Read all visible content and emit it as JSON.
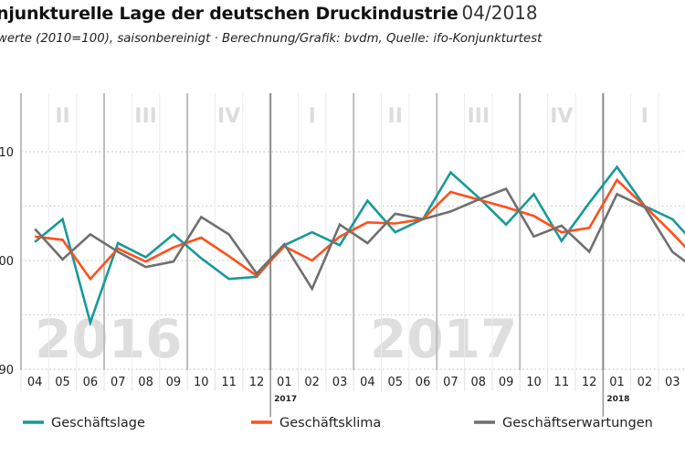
{
  "header": {
    "title": "njunkturelle Lage der deutschen Druckindustrie",
    "date": "04/2018",
    "subtitle": "werte (2010=100), saisonbereinigt  ·  Berechnung/Grafik: bvdm, Quelle: ifo-Konjunkturtest"
  },
  "chart_data": {
    "type": "line",
    "categories": [
      "04",
      "05",
      "06",
      "07",
      "08",
      "09",
      "10",
      "11",
      "12",
      "01",
      "02",
      "03",
      "04",
      "05",
      "06",
      "07",
      "08",
      "09",
      "10",
      "11",
      "12",
      "01",
      "02",
      "03",
      "04"
    ],
    "year_markers": [
      {
        "label": "2017",
        "at": "01"
      },
      {
        "label": "2018",
        "at": "01"
      }
    ],
    "year_watermarks": [
      "2016",
      "2017"
    ],
    "quarters": [
      "II",
      "III",
      "IV",
      "I",
      "II",
      "III",
      "IV",
      "I"
    ],
    "yticks": [
      90,
      100,
      110
    ],
    "ytick_labels": [
      "90",
      "100",
      "110"
    ],
    "ylim": [
      90,
      115
    ],
    "grid": true,
    "legend_position": "bottom",
    "series": [
      {
        "name": "Geschäftslage",
        "color": "#17999a",
        "values": [
          101.7,
          103.8,
          94.3,
          101.6,
          100.3,
          102.4,
          100.2,
          98.3,
          98.5,
          101.4,
          102.6,
          101.4,
          105.5,
          102.6,
          103.8,
          108.1,
          105.8,
          103.3,
          106.1,
          101.8,
          105.3,
          108.6,
          105.0,
          103.8,
          101.0
        ]
      },
      {
        "name": "Geschäftsklima",
        "color": "#ff4f1a",
        "values": [
          102.2,
          101.9,
          98.3,
          101.1,
          99.9,
          101.2,
          102.1,
          100.4,
          98.6,
          101.3,
          100.0,
          102.2,
          103.5,
          103.4,
          103.8,
          106.3,
          105.6,
          104.9,
          104.1,
          102.6,
          103.0,
          107.4,
          105.0,
          102.5,
          99.8
        ]
      },
      {
        "name": "Geschäftserwartungen",
        "color": "#6f6f6f",
        "values": [
          102.9,
          100.1,
          102.4,
          100.8,
          99.4,
          99.9,
          104.0,
          102.4,
          98.8,
          101.5,
          97.4,
          103.3,
          101.6,
          104.3,
          103.8,
          104.5,
          105.6,
          106.6,
          102.2,
          103.2,
          100.8,
          106.1,
          104.9,
          100.8,
          98.9
        ]
      }
    ]
  }
}
